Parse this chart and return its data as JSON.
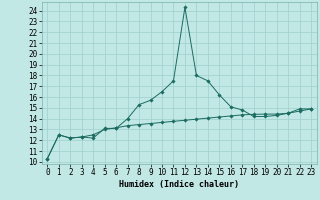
{
  "title": "",
  "xlabel": "Humidex (Indice chaleur)",
  "bg_color": "#c2e8e5",
  "grid_color": "#9ecfcc",
  "line_color": "#1a6b60",
  "xlim": [
    -0.5,
    23.5
  ],
  "ylim": [
    9.8,
    24.8
  ],
  "x_ticks": [
    0,
    1,
    2,
    3,
    4,
    5,
    6,
    7,
    8,
    9,
    10,
    11,
    12,
    13,
    14,
    15,
    16,
    17,
    18,
    19,
    20,
    21,
    22,
    23
  ],
  "y_ticks": [
    10,
    11,
    12,
    13,
    14,
    15,
    16,
    17,
    18,
    19,
    20,
    21,
    22,
    23,
    24
  ],
  "line1_x": [
    0,
    1,
    2,
    3,
    4,
    5,
    6,
    7,
    8,
    9,
    10,
    11,
    12,
    13,
    14,
    15,
    16,
    17,
    18,
    19,
    20,
    21,
    22,
    23
  ],
  "line1_y": [
    10.3,
    12.5,
    12.2,
    12.3,
    12.2,
    13.1,
    13.1,
    14.0,
    15.3,
    15.7,
    16.5,
    17.5,
    24.3,
    18.0,
    17.5,
    16.2,
    15.1,
    14.8,
    14.2,
    14.2,
    14.3,
    14.5,
    14.9,
    14.9
  ],
  "line2_x": [
    0,
    1,
    2,
    3,
    4,
    5,
    6,
    7,
    8,
    9,
    10,
    11,
    12,
    13,
    14,
    15,
    16,
    17,
    18,
    19,
    20,
    21,
    22,
    23
  ],
  "line2_y": [
    10.3,
    12.5,
    12.2,
    12.3,
    12.5,
    13.0,
    13.15,
    13.35,
    13.45,
    13.55,
    13.65,
    13.75,
    13.85,
    13.95,
    14.05,
    14.15,
    14.25,
    14.35,
    14.4,
    14.42,
    14.42,
    14.5,
    14.7,
    14.9
  ],
  "tick_fontsize": 5.5,
  "xlabel_fontsize": 6.0
}
